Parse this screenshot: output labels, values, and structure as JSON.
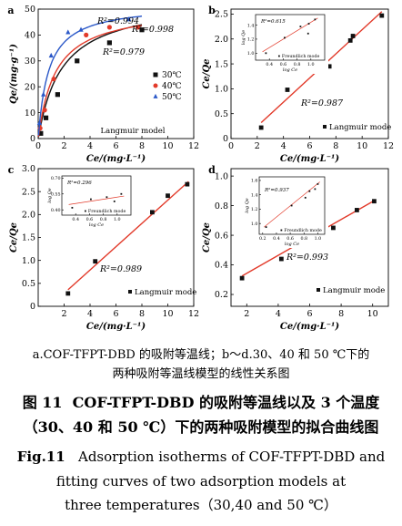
{
  "chart_data": [
    {
      "id": "a",
      "type": "scatter",
      "panel_label": "a",
      "xlabel": "Ce/(mg·L⁻¹)",
      "ylabel": "Qe/(mg·g⁻¹)",
      "xlim": [
        0,
        12
      ],
      "ylim": [
        0,
        50
      ],
      "xticks": [
        "0",
        "2",
        "4",
        "6",
        "8",
        "10",
        "12"
      ],
      "yticks": [
        "0",
        "10",
        "20",
        "30",
        "40",
        "50"
      ],
      "annotation": "Langmuir model",
      "legend": [
        "30℃",
        "40℃",
        "50℃"
      ],
      "legend_position": "right",
      "series": [
        {
          "name": "30℃",
          "color": "#111111",
          "marker": "square",
          "x": [
            0.2,
            0.6,
            1.5,
            3.0,
            5.5,
            8.0
          ],
          "y": [
            2,
            8,
            17,
            30,
            37,
            42
          ],
          "fit": {
            "qm": 54,
            "k": 0.55
          },
          "r2": "R²=0.979"
        },
        {
          "name": "40℃",
          "color": "#e23a2a",
          "marker": "circle",
          "x": [
            0.15,
            0.5,
            1.2,
            3.7,
            5.5,
            7.7
          ],
          "y": [
            4,
            11,
            23,
            40,
            43,
            43
          ],
          "fit": {
            "qm": 51,
            "k": 0.75
          },
          "r2": "R²=0.998"
        },
        {
          "name": "50℃",
          "color": "#2b58c8",
          "marker": "triangle",
          "x": [
            0.1,
            0.4,
            1.0,
            2.3,
            3.3,
            7.0
          ],
          "y": [
            6,
            17,
            32,
            41,
            42,
            46
          ],
          "fit": {
            "qm": 52,
            "k": 1.25
          },
          "r2": "R²=0.994"
        }
      ]
    },
    {
      "id": "b",
      "type": "scatter",
      "panel_label": "b",
      "xlabel": "Ce/(mg·L⁻¹)",
      "ylabel": "Ce/Qe",
      "xlim": [
        0,
        12
      ],
      "ylim": [
        0,
        2.6
      ],
      "xticks": [
        "0",
        "2",
        "4",
        "6",
        "8",
        "10",
        "12"
      ],
      "yticks": [
        "0",
        "0.5",
        "1.0",
        "1.5",
        "2.0",
        "2.5"
      ],
      "legend": [
        "Langmuir mode"
      ],
      "legend_position": "bottom-right",
      "r2": "R²=0.987",
      "series": [
        {
          "name": "Langmuir mode",
          "color": "#111111",
          "x": [
            2.3,
            4.3,
            7.5,
            9.1,
            9.3,
            11.5
          ],
          "y": [
            0.22,
            0.98,
            1.45,
            1.97,
            2.06,
            2.47
          ],
          "fit": [
            [
              2.3,
              0.32
            ],
            [
              11.5,
              2.55
            ]
          ]
        }
      ],
      "inset": {
        "xlabel": "log Ce",
        "ylabel": "log Qe",
        "xlim": [
          0.2,
          1.2
        ],
        "ylim": [
          0.9,
          1.55
        ],
        "xticks": [
          "0.4",
          "0.6",
          "0.8",
          "1.0"
        ],
        "yticks": [
          "1.0",
          "1.2",
          "1.4"
        ],
        "r2": "R²=0.615",
        "legend": "Freundlich mode",
        "x": [
          0.35,
          0.62,
          0.85,
          0.96,
          0.97,
          1.06
        ],
        "y": [
          1.0,
          1.22,
          1.38,
          1.28,
          1.42,
          1.48
        ],
        "fit": [
          [
            0.3,
            1.02
          ],
          [
            1.1,
            1.5
          ]
        ]
      }
    },
    {
      "id": "c",
      "type": "scatter",
      "panel_label": "c",
      "xlabel": "Ce/(mg·L⁻¹)",
      "ylabel": "Ce/Qe",
      "xlim": [
        0,
        12
      ],
      "ylim": [
        0,
        3.0
      ],
      "xticks": [
        "2",
        "4",
        "6",
        "8",
        "10",
        "12"
      ],
      "yticks": [
        "0",
        "0.5",
        "1.0",
        "1.5",
        "2.0",
        "2.5",
        "3.0"
      ],
      "legend": [
        "Langmuir mode"
      ],
      "legend_position": "bottom-right",
      "r2": "R²=0.989",
      "series": [
        {
          "name": "Langmuir mode",
          "color": "#111111",
          "x": [
            2.3,
            4.4,
            8.8,
            10.0,
            11.5
          ],
          "y": [
            0.28,
            0.98,
            2.05,
            2.41,
            2.66
          ],
          "fit": [
            [
              2.3,
              0.36
            ],
            [
              11.6,
              2.72
            ]
          ]
        }
      ],
      "inset": {
        "xlabel": "log Ce",
        "ylabel": "log Qe",
        "xlim": [
          0.2,
          1.2
        ],
        "ylim": [
          0.35,
          0.72
        ],
        "xticks": [
          "0.4",
          "0.6",
          "0.8",
          "1.0"
        ],
        "yticks": [
          "0.40",
          "0.55",
          "0.70"
        ],
        "r2": "R²=0.296",
        "legend": "Freundlich mode",
        "x": [
          0.35,
          0.62,
          0.85,
          0.96,
          1.06
        ],
        "y": [
          0.42,
          0.5,
          0.52,
          0.48,
          0.55
        ],
        "fit": [
          [
            0.3,
            0.45
          ],
          [
            1.1,
            0.53
          ]
        ]
      }
    },
    {
      "id": "d",
      "type": "scatter",
      "panel_label": "d",
      "xlabel": "Ce/(mg·L⁻¹)",
      "ylabel": "Ce/Qe",
      "xlim": [
        1,
        11
      ],
      "ylim": [
        0.12,
        1.05
      ],
      "xticks": [
        "2",
        "4",
        "6",
        "8",
        "10"
      ],
      "yticks": [
        "0.2",
        "0.4",
        "0.6",
        "0.8",
        "1.0"
      ],
      "legend": [
        "Langmuir mode"
      ],
      "legend_position": "bottom-right",
      "r2": "R²=0.993",
      "series": [
        {
          "name": "Langmuir mode",
          "color": "#111111",
          "x": [
            1.7,
            4.2,
            6.6,
            7.5,
            9.0,
            10.1
          ],
          "y": [
            0.31,
            0.44,
            0.59,
            0.65,
            0.77,
            0.83
          ],
          "fit": [
            [
              1.7,
              0.325
            ],
            [
              10.2,
              0.84
            ]
          ]
        }
      ],
      "inset": {
        "xlabel": "log Ce",
        "ylabel": "log Qe",
        "xlim": [
          0.15,
          1.1
        ],
        "ylim": [
          0.85,
          1.65
        ],
        "xticks": [
          "0.2",
          "0.4",
          "0.6",
          "0.8",
          "1.0"
        ],
        "yticks": [
          "1.0",
          "1.2",
          "1.4",
          "1.6"
        ],
        "r2": "R²=0.937",
        "legend": "Freundlich mode",
        "x": [
          0.25,
          0.62,
          0.82,
          0.88,
          0.96,
          1.0
        ],
        "y": [
          0.95,
          1.25,
          1.36,
          1.45,
          1.48,
          1.55
        ],
        "fit": [
          [
            0.22,
            0.95
          ],
          [
            1.03,
            1.58
          ]
        ]
      }
    }
  ],
  "caption": {
    "line1": "a.COF-TFPT-DBD 的吸附等温线；b～d.30、40 和 50 ℃下的",
    "line2": "两种吸附等温线模型的线性关系图",
    "cn_label": "图 11",
    "cn_line1": "COF-TFPT-DBD 的吸附等温线以及 3 个温度",
    "cn_line2": "（30、40 和 50 ℃）下的两种吸附模型的拟合曲线图",
    "en_label": "Fig.11",
    "en_line1": "Adsorption isotherms of COF-TFPT-DBD and",
    "en_line2": "fitting curves of two adsorption models at",
    "en_line3": "three temperatures（30,40 and 50 ℃）"
  },
  "colors": {
    "black": "#111111",
    "red": "#e23a2a",
    "blue": "#2b58c8"
  }
}
